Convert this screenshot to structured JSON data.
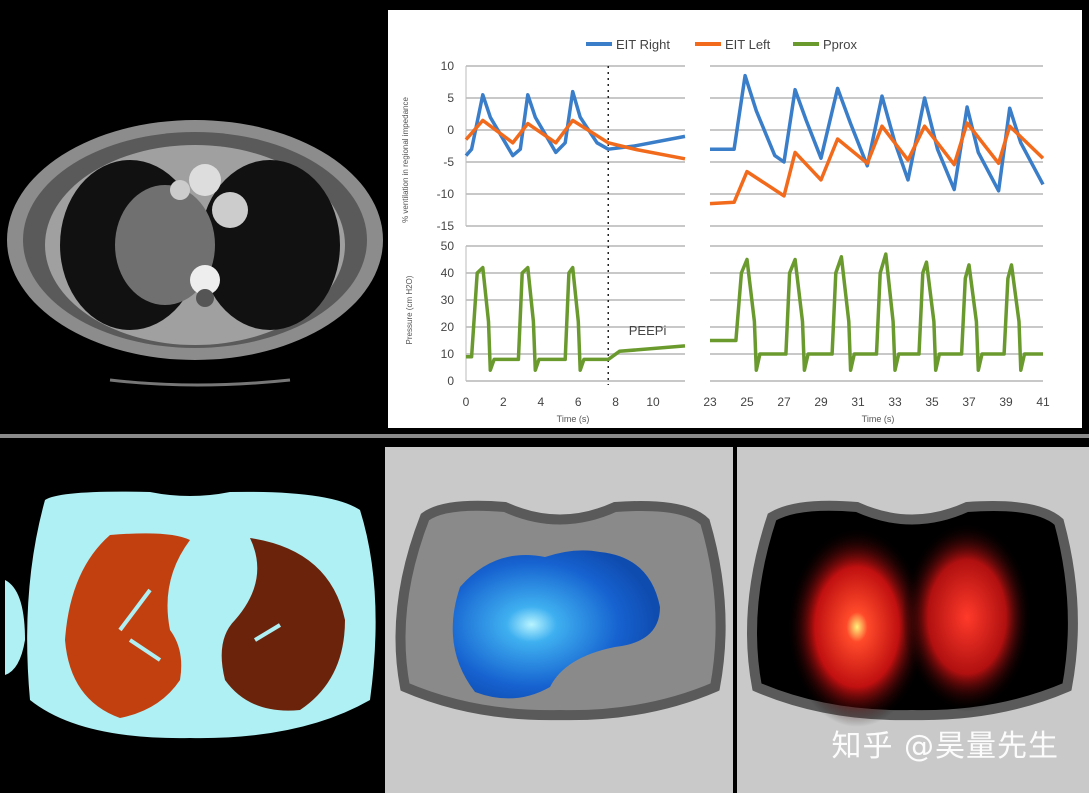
{
  "chart_data": {
    "type": "line",
    "legend": {
      "position": "top",
      "entries": [
        "EIT Right",
        "EIT Left",
        "Pprox"
      ]
    },
    "colors": {
      "EIT Right": "#3a7dc9",
      "EIT Left": "#f26a1b",
      "Pprox": "#6a9a2e"
    },
    "xlabel": "Time (s)",
    "panels": {
      "impedance": {
        "ylabel": "% ventilation in regional impedance",
        "ylim": [
          -15,
          10
        ],
        "yticks": [
          "10",
          "5",
          "0",
          "-5",
          "-10",
          "-15"
        ]
      },
      "pressure": {
        "ylabel": "Pressure (cm H2O)",
        "ylim": [
          0,
          50
        ],
        "yticks": [
          "50",
          "40",
          "30",
          "20",
          "10",
          "0"
        ]
      }
    },
    "x_segments": [
      {
        "xlim": [
          0,
          11.7
        ],
        "xticks": [
          "0",
          "2",
          "4",
          "6",
          "8",
          "10"
        ]
      },
      {
        "xlim": [
          23,
          41
        ],
        "xticks": [
          "23",
          "25",
          "27",
          "29",
          "31",
          "33",
          "35",
          "37",
          "39",
          "41"
        ]
      }
    ],
    "marker_line_x": 7.6,
    "annotation": {
      "text": "PEEPi",
      "x": 9.7,
      "y": 17
    },
    "series": [
      {
        "name": "EIT Right",
        "panel": "impedance",
        "segments": [
          [
            [
              0,
              -4
            ],
            [
              0.3,
              -3
            ],
            [
              0.9,
              5.5
            ],
            [
              1.3,
              2
            ],
            [
              2.5,
              -4
            ],
            [
              2.9,
              -3
            ],
            [
              3.3,
              5.5
            ],
            [
              3.7,
              2
            ],
            [
              4.8,
              -3.5
            ],
            [
              5.3,
              -2
            ],
            [
              5.7,
              6
            ],
            [
              6.1,
              2
            ],
            [
              7,
              -2
            ],
            [
              7.6,
              -3
            ],
            [
              9,
              -2.5
            ],
            [
              11.7,
              -1
            ]
          ],
          [
            [
              23,
              -3
            ],
            [
              24.3,
              -3
            ],
            [
              24.9,
              8.5
            ],
            [
              25.5,
              3
            ],
            [
              26.5,
              -4
            ],
            [
              27,
              -5
            ],
            [
              27.6,
              6.3
            ],
            [
              28.2,
              1.5
            ],
            [
              29,
              -4.4
            ],
            [
              29.9,
              6.5
            ],
            [
              30.6,
              1
            ],
            [
              31.5,
              -5.6
            ],
            [
              32.3,
              5.3
            ],
            [
              33,
              -2
            ],
            [
              33.7,
              -7.8
            ],
            [
              34.6,
              5
            ],
            [
              35.3,
              -3
            ],
            [
              36.2,
              -9.3
            ],
            [
              36.9,
              3.6
            ],
            [
              37.5,
              -3.5
            ],
            [
              38.6,
              -9.5
            ],
            [
              39.2,
              3.4
            ],
            [
              39.8,
              -2
            ],
            [
              41,
              -8.5
            ]
          ]
        ]
      },
      {
        "name": "EIT Left",
        "panel": "impedance",
        "segments": [
          [
            [
              0,
              -1.5
            ],
            [
              0.9,
              1.5
            ],
            [
              2.5,
              -2
            ],
            [
              3.3,
              1
            ],
            [
              4.8,
              -2
            ],
            [
              5.7,
              1.5
            ],
            [
              7.6,
              -2
            ],
            [
              9,
              -3
            ],
            [
              11.7,
              -4.5
            ]
          ],
          [
            [
              23,
              -11.5
            ],
            [
              24.3,
              -11.3
            ],
            [
              25,
              -6.5
            ],
            [
              27,
              -10.3
            ],
            [
              27.6,
              -3.5
            ],
            [
              29,
              -7.8
            ],
            [
              29.9,
              -1.4
            ],
            [
              31.5,
              -5.2
            ],
            [
              32.3,
              0.6
            ],
            [
              33.7,
              -4.7
            ],
            [
              34.6,
              0.6
            ],
            [
              36.2,
              -5.4
            ],
            [
              36.9,
              1.1
            ],
            [
              38.6,
              -5.2
            ],
            [
              39.2,
              0.6
            ],
            [
              41,
              -4.4
            ]
          ]
        ]
      },
      {
        "name": "Pprox",
        "panel": "pressure",
        "segments": [
          [
            [
              0,
              9
            ],
            [
              0.3,
              9
            ],
            [
              0.6,
              40
            ],
            [
              0.9,
              42
            ],
            [
              1.2,
              22
            ],
            [
              1.3,
              4
            ],
            [
              1.5,
              8
            ],
            [
              2.8,
              8
            ],
            [
              3.0,
              40
            ],
            [
              3.3,
              42
            ],
            [
              3.6,
              22
            ],
            [
              3.7,
              4
            ],
            [
              3.9,
              8
            ],
            [
              5.3,
              8
            ],
            [
              5.5,
              40
            ],
            [
              5.7,
              42
            ],
            [
              6.0,
              22
            ],
            [
              6.1,
              4
            ],
            [
              6.3,
              8
            ],
            [
              7.6,
              8
            ],
            [
              8.2,
              11
            ],
            [
              11.7,
              13
            ]
          ],
          [
            [
              23,
              15
            ],
            [
              24.4,
              15
            ],
            [
              24.7,
              40
            ],
            [
              25,
              45
            ],
            [
              25.4,
              22
            ],
            [
              25.5,
              4
            ],
            [
              25.7,
              10
            ],
            [
              27.1,
              10
            ],
            [
              27.3,
              40
            ],
            [
              27.6,
              45
            ],
            [
              28,
              22
            ],
            [
              28.1,
              4
            ],
            [
              28.3,
              10
            ],
            [
              29.6,
              10
            ],
            [
              29.8,
              40
            ],
            [
              30.1,
              46
            ],
            [
              30.5,
              22
            ],
            [
              30.6,
              4
            ],
            [
              30.8,
              10
            ],
            [
              32,
              10
            ],
            [
              32.2,
              40
            ],
            [
              32.5,
              47
            ],
            [
              32.9,
              22
            ],
            [
              33,
              4
            ],
            [
              33.2,
              10
            ],
            [
              34.3,
              10
            ],
            [
              34.5,
              40
            ],
            [
              34.7,
              44
            ],
            [
              35.1,
              22
            ],
            [
              35.2,
              4
            ],
            [
              35.4,
              10
            ],
            [
              36.6,
              10
            ],
            [
              36.8,
              38
            ],
            [
              37,
              43
            ],
            [
              37.4,
              22
            ],
            [
              37.5,
              4
            ],
            [
              37.7,
              10
            ],
            [
              38.9,
              10
            ],
            [
              39.1,
              38
            ],
            [
              39.3,
              43
            ],
            [
              39.7,
              22
            ],
            [
              39.8,
              4
            ],
            [
              40,
              10
            ],
            [
              41,
              10
            ]
          ]
        ]
      }
    ]
  },
  "watermark": "知乎 @昊量先生"
}
